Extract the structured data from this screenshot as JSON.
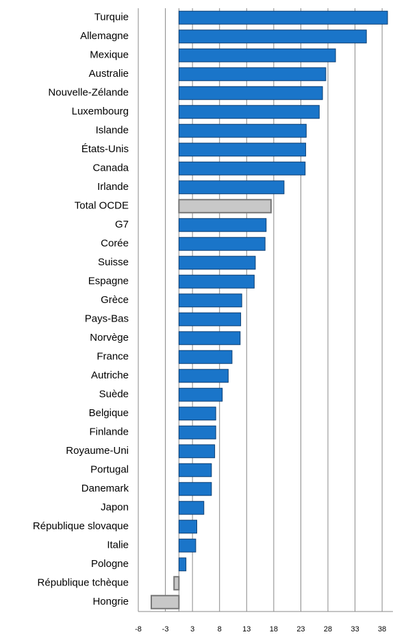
{
  "chart_data": {
    "type": "barh",
    "categories": [
      "Turquie",
      "Allemagne",
      "Mexique",
      "Australie",
      "Nouvelle-Zélande",
      "Luxembourg",
      "Islande",
      "États-Unis",
      "Canada",
      "Irlande",
      "Total OCDE",
      "G7",
      "Corée",
      "Suisse",
      "Espagne",
      "Grèce",
      "Pays-Bas",
      "Norvège",
      "France",
      "Autriche",
      "Suède",
      "Belgique",
      "Finlande",
      "Royaume-Uni",
      "Portugal",
      "Danemark",
      "Japon",
      "République slovaque",
      "Italie",
      "Pologne",
      "République tchèque",
      "Hongrie"
    ],
    "values": [
      38.5,
      34.6,
      28.9,
      27.1,
      26.5,
      25.9,
      23.5,
      23.4,
      23.3,
      19.4,
      17.0,
      16.1,
      15.9,
      14.1,
      13.9,
      11.6,
      11.4,
      11.3,
      9.8,
      9.1,
      8.0,
      6.8,
      6.8,
      6.6,
      6.0,
      6.0,
      4.6,
      3.3,
      3.1,
      1.3,
      -0.9,
      -5.1
    ],
    "colors": [
      "#1a75c9",
      "#1a75c9",
      "#1a75c9",
      "#1a75c9",
      "#1a75c9",
      "#1a75c9",
      "#1a75c9",
      "#1a75c9",
      "#1a75c9",
      "#1a75c9",
      "#c8c8c8",
      "#1a75c9",
      "#1a75c9",
      "#1a75c9",
      "#1a75c9",
      "#1a75c9",
      "#1a75c9",
      "#1a75c9",
      "#1a75c9",
      "#1a75c9",
      "#1a75c9",
      "#1a75c9",
      "#1a75c9",
      "#1a75c9",
      "#1a75c9",
      "#1a75c9",
      "#1a75c9",
      "#1a75c9",
      "#1a75c9",
      "#1a75c9",
      "#c8c8c8",
      "#c8c8c8"
    ],
    "xlim": [
      -7.5,
      39.5
    ],
    "xticks": [
      {
        "value": -7.5,
        "label": "-8"
      },
      {
        "value": -2.5,
        "label": "-3"
      },
      {
        "value": 2.5,
        "label": "3"
      },
      {
        "value": 7.5,
        "label": "8"
      },
      {
        "value": 12.5,
        "label": "13"
      },
      {
        "value": 17.5,
        "label": "18"
      },
      {
        "value": 22.5,
        "label": "23"
      },
      {
        "value": 27.5,
        "label": "28"
      },
      {
        "value": 32.5,
        "label": "33"
      },
      {
        "value": 37.5,
        "label": "38"
      }
    ],
    "grid": true
  }
}
